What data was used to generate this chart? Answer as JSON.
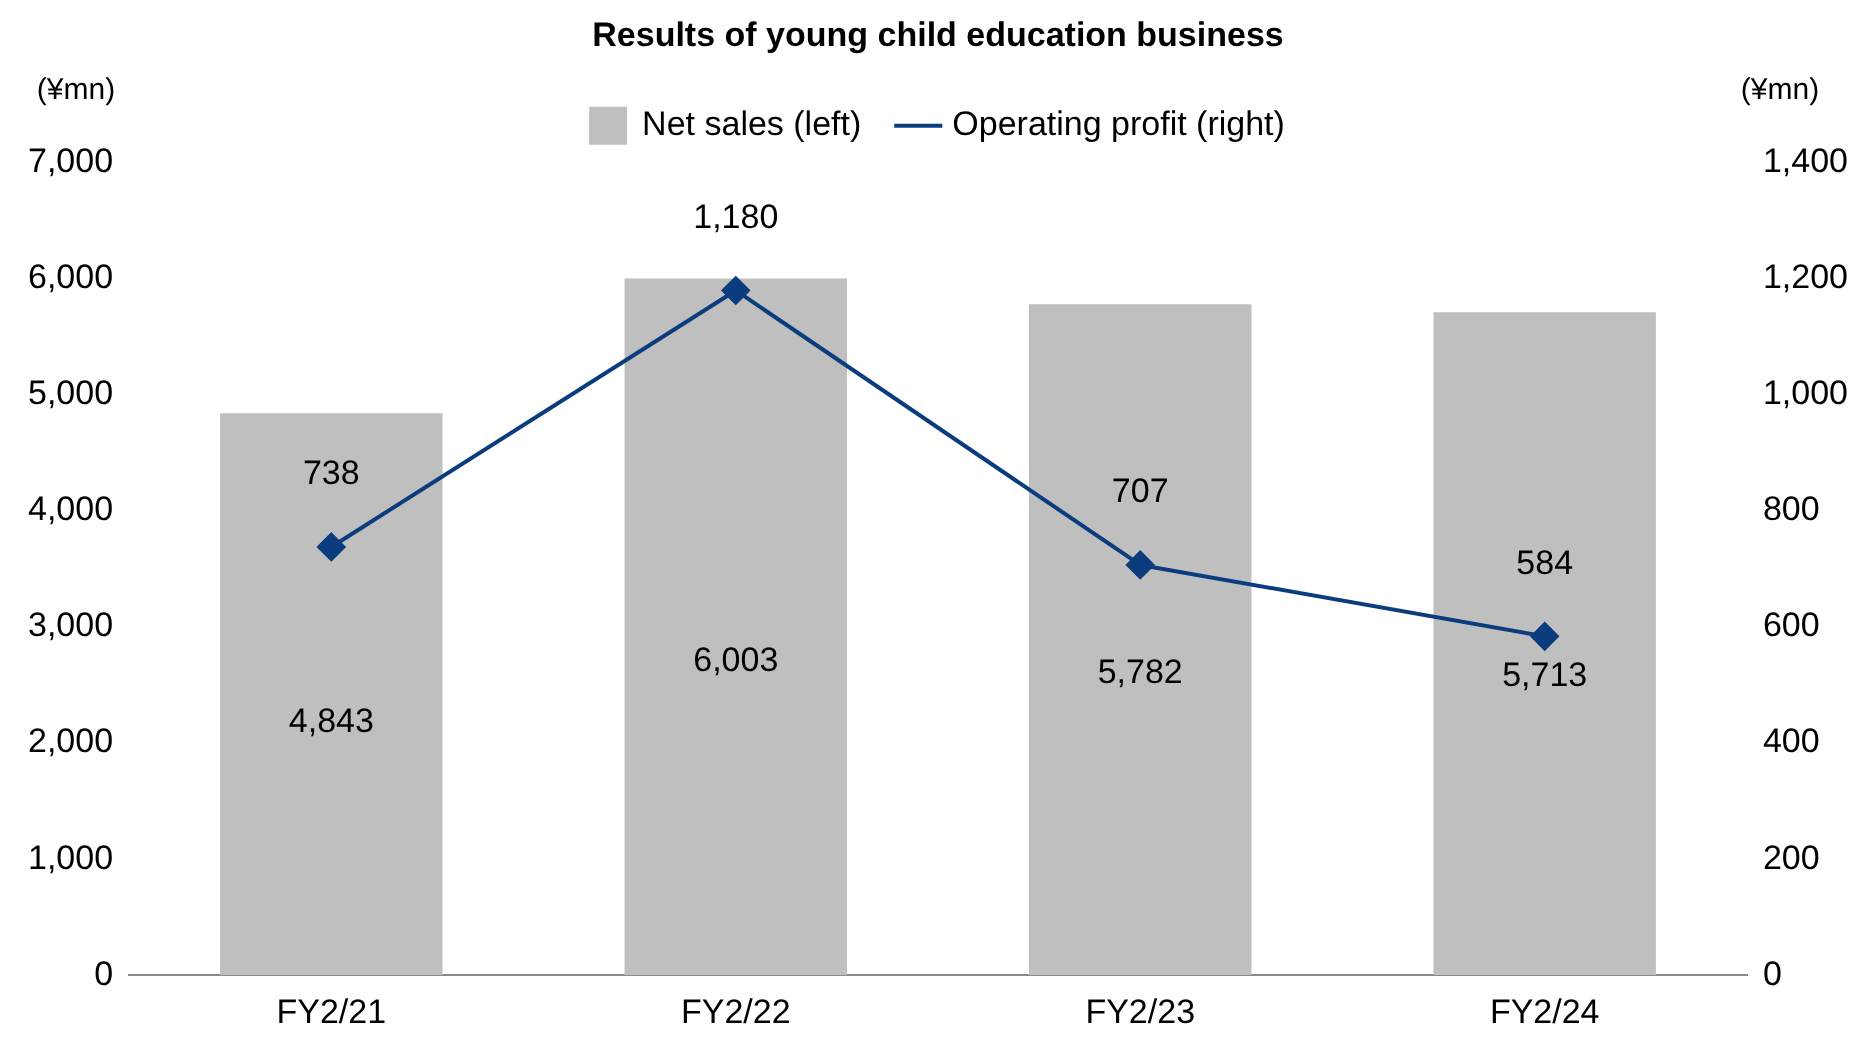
{
  "chart_data": {
    "type": "bar",
    "title": "Results of young child education business",
    "ylabel": "(¥mn)",
    "y2label": "(¥mn)",
    "categories": [
      "FY2/21",
      "FY2/22",
      "FY2/23",
      "FY2/24"
    ],
    "series": [
      {
        "name": "Net sales (left)",
        "color": "#bfbfbf",
        "values": [
          4843,
          6003,
          5782,
          5713
        ],
        "value_labels": [
          "4,843",
          "6,003",
          "5,782",
          "5,713"
        ]
      },
      {
        "name": "Operating profit (right)",
        "type": "line",
        "axis": "y2",
        "color": "#0b3c7d",
        "values": [
          738,
          1180,
          707,
          584
        ],
        "value_labels": [
          "738",
          "1,180",
          "707",
          "584"
        ],
        "marker": "diamond"
      }
    ],
    "ylim": [
      0,
      7000
    ],
    "yticks": [
      {
        "value": 0,
        "label": "0"
      },
      {
        "value": 1000,
        "label": "1,000"
      },
      {
        "value": 2000,
        "label": "2,000"
      },
      {
        "value": 3000,
        "label": "3,000"
      },
      {
        "value": 4000,
        "label": "4,000"
      },
      {
        "value": 5000,
        "label": "5,000"
      },
      {
        "value": 6000,
        "label": "6,000"
      },
      {
        "value": 7000,
        "label": "7,000"
      }
    ],
    "y2lim": [
      0,
      1400
    ],
    "y2ticks": [
      {
        "value": 0,
        "label": "0"
      },
      {
        "value": 200,
        "label": "200"
      },
      {
        "value": 400,
        "label": "400"
      },
      {
        "value": 600,
        "label": "600"
      },
      {
        "value": 800,
        "label": "800"
      },
      {
        "value": 1000,
        "label": "1,000"
      },
      {
        "value": 1200,
        "label": "1,200"
      },
      {
        "value": 1400,
        "label": "1,400"
      }
    ],
    "grid": false,
    "legend": "top"
  }
}
